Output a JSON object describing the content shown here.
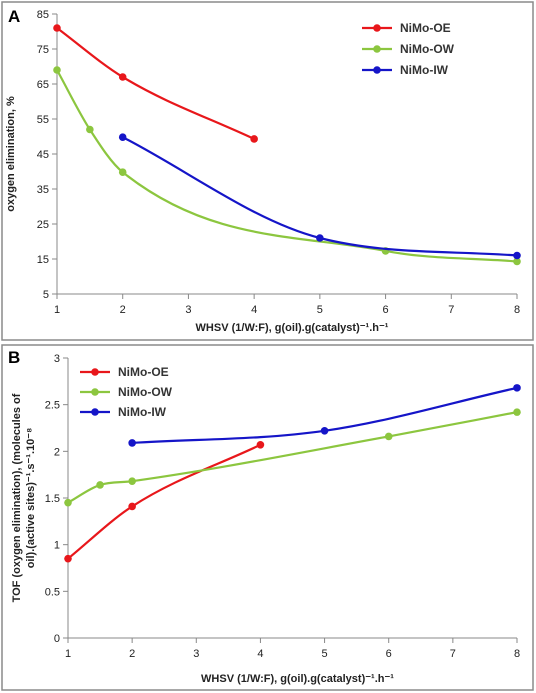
{
  "chart_data": [
    {
      "type": "line",
      "panel": "A",
      "xlabel": "WHSV (1/W:F), g(oil).g(catalyst)⁻¹.h⁻¹",
      "ylabel": "oxygen elimination, %",
      "xlim": [
        1,
        8
      ],
      "ylim": [
        5,
        85
      ],
      "xticks": [
        1,
        2,
        3,
        4,
        5,
        6,
        7,
        8
      ],
      "yticks": [
        5,
        15,
        25,
        35,
        45,
        55,
        65,
        75,
        85
      ],
      "grid": false,
      "legend_position": "top-right",
      "series": [
        {
          "name": "NiMo-OE",
          "color": "#e8171b",
          "x": [
            1,
            2,
            4
          ],
          "y": [
            81,
            67,
            49.3
          ]
        },
        {
          "name": "NiMo-OW",
          "color": "#8cc63f",
          "x": [
            1,
            1.5,
            2,
            6,
            8
          ],
          "y": [
            69,
            52,
            39.8,
            17.3,
            14.3
          ]
        },
        {
          "name": "NiMo-IW",
          "color": "#1515c8",
          "x": [
            2,
            5,
            8
          ],
          "y": [
            49.8,
            21,
            16
          ]
        }
      ]
    },
    {
      "type": "line",
      "panel": "B",
      "xlabel": "WHSV (1/W:F), g(oil).g(catalyst)⁻¹.h⁻¹",
      "ylabel_lines": [
        "TOF (oxygen elimination), (molecules of",
        "oil).(active sites)⁻¹.s⁻¹.10⁻⁸"
      ],
      "xlim": [
        1,
        8
      ],
      "ylim": [
        0,
        3
      ],
      "xticks": [
        1,
        2,
        3,
        4,
        5,
        6,
        7,
        8
      ],
      "yticks": [
        0,
        0.5,
        1,
        1.5,
        2,
        2.5,
        3
      ],
      "grid": false,
      "legend_position": "top-left",
      "series": [
        {
          "name": "NiMo-OE",
          "color": "#e8171b",
          "x": [
            1,
            2,
            4
          ],
          "y": [
            0.85,
            1.41,
            2.07
          ]
        },
        {
          "name": "NiMo-OW",
          "color": "#8cc63f",
          "x": [
            1,
            1.5,
            2,
            6,
            8
          ],
          "y": [
            1.45,
            1.64,
            1.68,
            2.16,
            2.42
          ]
        },
        {
          "name": "NiMo-IW",
          "color": "#1515c8",
          "x": [
            2,
            5,
            8
          ],
          "y": [
            2.09,
            2.22,
            2.68
          ]
        }
      ]
    }
  ]
}
